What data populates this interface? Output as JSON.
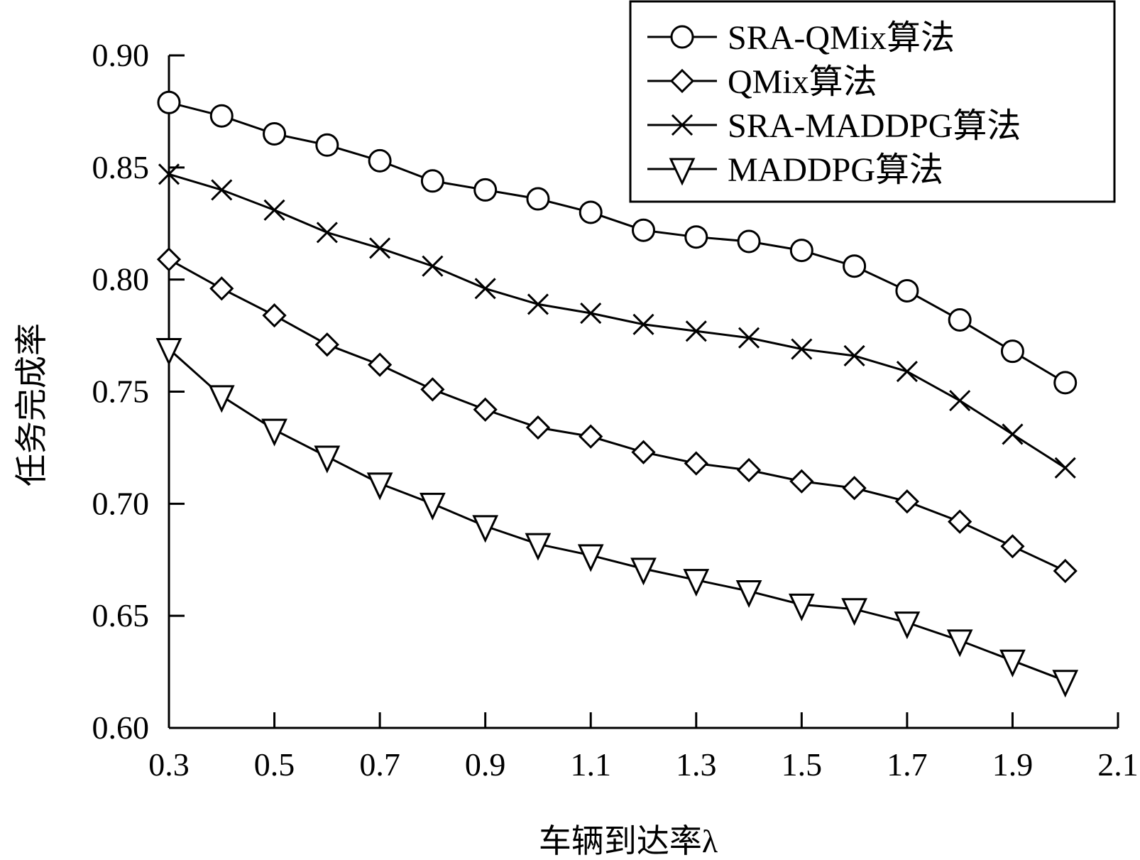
{
  "chart_data": {
    "type": "line",
    "xlabel": "车辆到达率λ",
    "ylabel": "任务完成率",
    "xlim": [
      0.3,
      2.1
    ],
    "ylim": [
      0.6,
      0.9
    ],
    "xticks": [
      "0.3",
      "0.5",
      "0.7",
      "0.9",
      "1.1",
      "1.3",
      "1.5",
      "1.7",
      "1.9",
      "2.1"
    ],
    "yticks": [
      "0.60",
      "0.65",
      "0.70",
      "0.75",
      "0.80",
      "0.85",
      "0.90"
    ],
    "grid": false,
    "legend_position": "top-right",
    "x": [
      0.3,
      0.4,
      0.5,
      0.6,
      0.7,
      0.8,
      0.9,
      1.0,
      1.1,
      1.2,
      1.3,
      1.4,
      1.5,
      1.6,
      1.7,
      1.8,
      1.9,
      2.0
    ],
    "series": [
      {
        "name": "SRA-QMix算法",
        "marker": "circle",
        "values": [
          0.879,
          0.873,
          0.865,
          0.86,
          0.853,
          0.844,
          0.84,
          0.836,
          0.83,
          0.822,
          0.819,
          0.817,
          0.813,
          0.806,
          0.795,
          0.782,
          0.768,
          0.754
        ]
      },
      {
        "name": "QMix算法",
        "marker": "diamond",
        "values": [
          0.809,
          0.796,
          0.784,
          0.771,
          0.762,
          0.751,
          0.742,
          0.734,
          0.73,
          0.723,
          0.718,
          0.715,
          0.71,
          0.707,
          0.701,
          0.692,
          0.681,
          0.67
        ]
      },
      {
        "name": "SRA-MADDPG算法",
        "marker": "x",
        "values": [
          0.847,
          0.84,
          0.831,
          0.821,
          0.814,
          0.806,
          0.796,
          0.789,
          0.785,
          0.78,
          0.777,
          0.774,
          0.769,
          0.766,
          0.759,
          0.746,
          0.731,
          0.716
        ]
      },
      {
        "name": "MADDPG算法",
        "marker": "triangle-down",
        "values": [
          0.769,
          0.748,
          0.733,
          0.721,
          0.709,
          0.7,
          0.69,
          0.682,
          0.677,
          0.671,
          0.666,
          0.661,
          0.655,
          0.653,
          0.647,
          0.639,
          0.63,
          0.621
        ]
      }
    ]
  }
}
